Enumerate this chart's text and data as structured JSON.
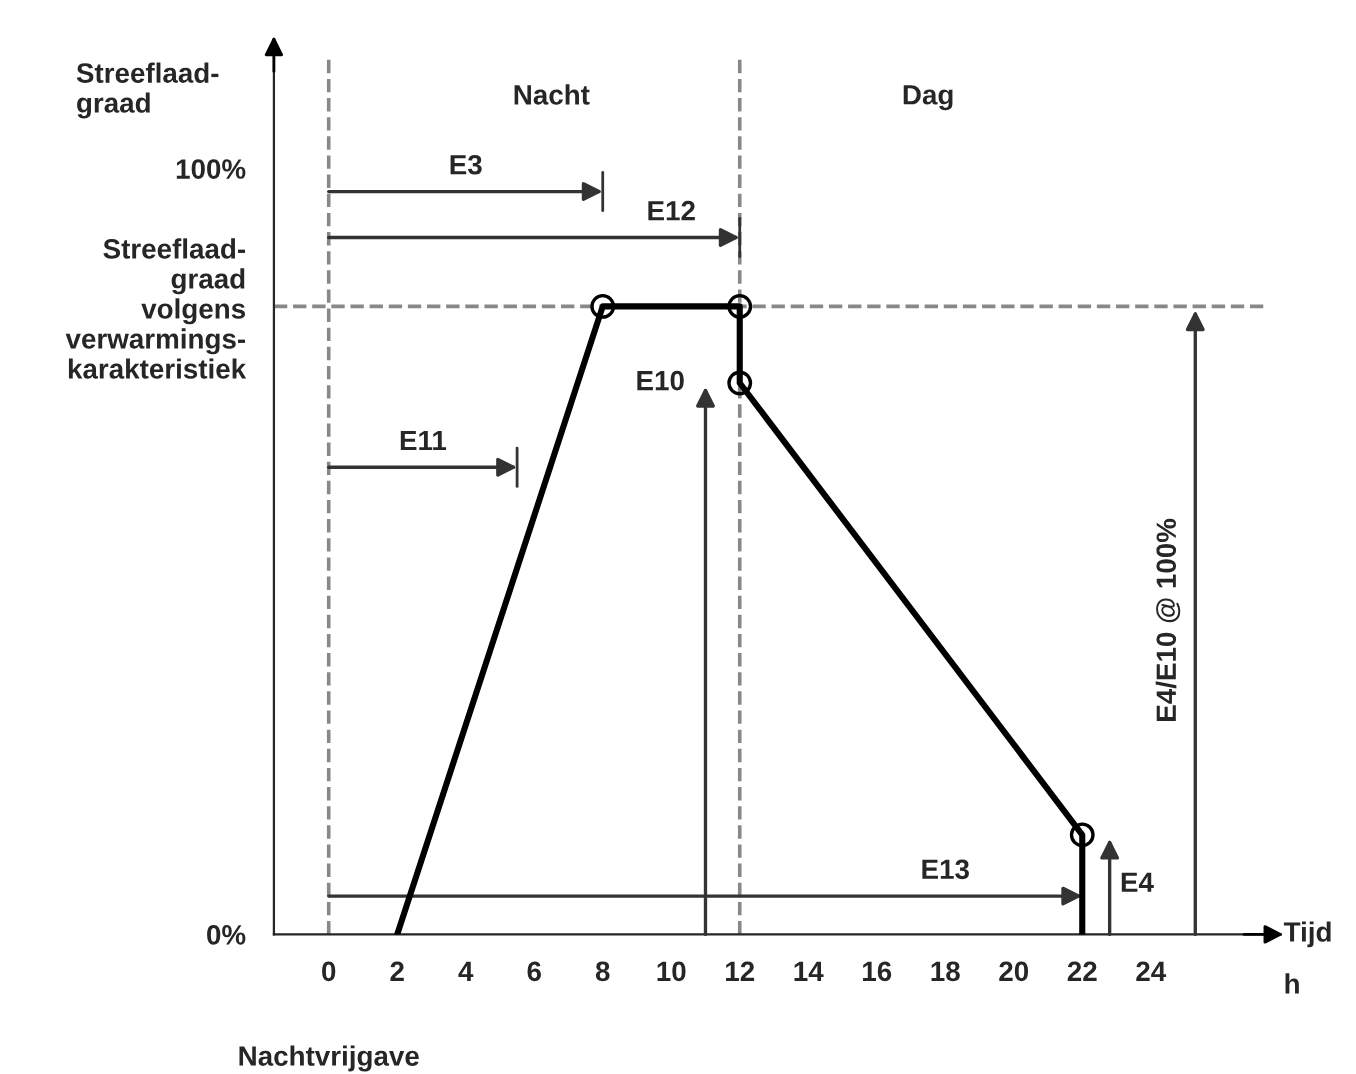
{
  "chart_data": {
    "type": "line",
    "xlabel": "Tijd",
    "ylabel": "Streeflaad-\ngraad",
    "x": [
      2,
      8,
      12,
      12,
      22,
      22
    ],
    "series": [
      {
        "color": "#000000",
        "values": [
          0,
          82,
          82,
          72,
          13,
          0
        ],
        "marker": "none"
      },
      {
        "type": "scatter",
        "color": "#000000",
        "x": [
          8,
          12,
          12,
          22
        ],
        "values": [
          82,
          82,
          72,
          13
        ],
        "marker": "circle"
      }
    ],
    "xlim": [
      -1.6,
      27.3
    ],
    "ylim": [
      0,
      115
    ],
    "xticks": [
      0,
      2,
      4,
      6,
      8,
      10,
      12,
      14,
      16,
      18,
      20,
      22,
      24
    ],
    "yticks": [
      {
        "value": 0,
        "label": "0%"
      },
      {
        "value": 82,
        "label": "Streeflaad-\ngraad\nvolgens\nverwarmings-\nkarakteristiek"
      },
      {
        "value": 100,
        "label": "100%"
      }
    ],
    "ref_lines": [
      {
        "axis": "x",
        "value": 0,
        "label": null,
        "color": "#888888",
        "line_style": "dashed"
      },
      {
        "axis": "x",
        "value": 12,
        "label": null,
        "color": "#888888",
        "line_style": "dashed"
      },
      {
        "axis": "y",
        "value": 82,
        "label": null,
        "color": "#888888",
        "line_style": "dashed"
      }
    ],
    "annotations": [
      "Nacht",
      "Dag",
      "E3",
      "E12",
      "E11",
      "E13",
      "E10",
      "E4",
      "E4/E10 @ 100%",
      "h",
      "Nachtvrijgave"
    ]
  }
}
